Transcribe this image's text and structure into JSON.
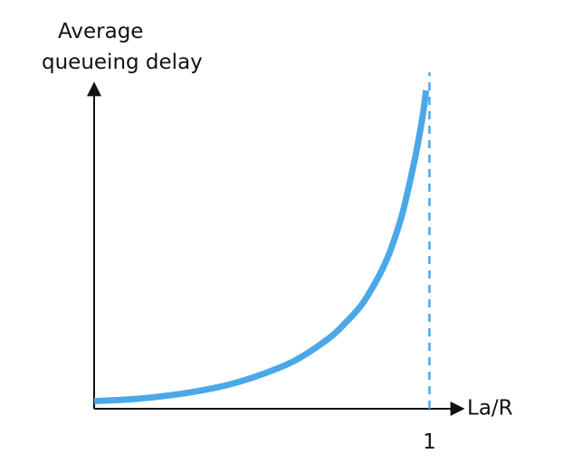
{
  "chart_data": {
    "type": "line",
    "ylabel_lines": [
      "Average",
      "queueing delay"
    ],
    "xlabel": "La/R",
    "x_ticks": [
      {
        "value": 1,
        "label": "1"
      }
    ],
    "xlim": [
      0,
      1.15
    ],
    "ylim": [
      0,
      1
    ],
    "reference_lines": [
      {
        "axis": "x",
        "value": 1,
        "style": "dashed"
      }
    ],
    "series": [
      {
        "x": [
          0,
          0.1,
          0.2,
          0.3,
          0.4,
          0.5,
          0.6,
          0.7,
          0.75,
          0.8,
          0.85,
          0.88,
          0.9,
          0.92,
          0.94,
          0.96,
          0.98,
          0.99
        ],
        "y": [
          0.01,
          0.015,
          0.025,
          0.04,
          0.062,
          0.095,
          0.14,
          0.21,
          0.26,
          0.32,
          0.41,
          0.48,
          0.54,
          0.61,
          0.7,
          0.8,
          0.92,
          1.0
        ]
      }
    ],
    "colors": {
      "curve": "#4aa8e8",
      "reference_line": "#4aa8e8",
      "axis": "#111111"
    }
  }
}
